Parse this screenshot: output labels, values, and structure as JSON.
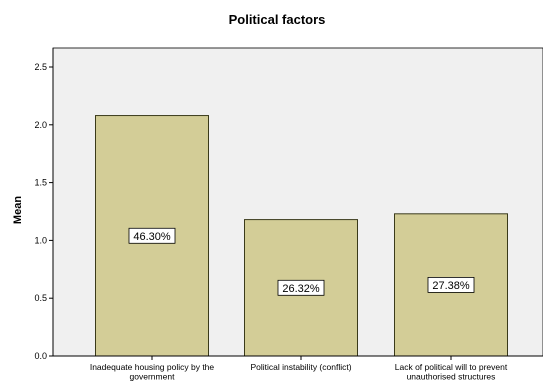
{
  "chart_data": {
    "type": "bar",
    "title": "Political factors",
    "xlabel": "",
    "ylabel": "Mean",
    "ylim": [
      0,
      2.6
    ],
    "yticks": [
      "0.0",
      "0.5",
      "1.0",
      "1.5",
      "2.0",
      "2.5"
    ],
    "ytick_values": [
      0.0,
      0.5,
      1.0,
      1.5,
      2.0,
      2.5
    ],
    "categories": [
      [
        "Inadequate housing policy by the",
        "government"
      ],
      [
        "Political instability (conflict)"
      ],
      [
        "Lack of political will to prevent",
        "unauthorised structures"
      ]
    ],
    "values": [
      2.08,
      1.18,
      1.23
    ],
    "data_labels": [
      "46.30%",
      "26.32%",
      "27.38%"
    ],
    "colors": {
      "bar_fill": "#d3cd97",
      "bar_stroke": "#3a3a1a",
      "plot_background": "#f0f0f0",
      "label_box": "#ffffff"
    },
    "grid": false,
    "legend": "none"
  }
}
